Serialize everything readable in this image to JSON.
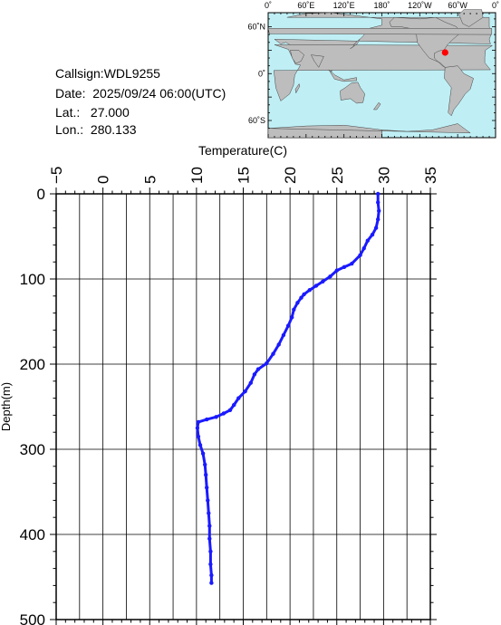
{
  "info": {
    "callsign": "Callsign:WDL9255",
    "date": "Date:  2025/09/24 06:00(UTC)",
    "lat": "Lat.:   27.000",
    "lon": "Lon.:  280.133"
  },
  "map": {
    "top_labels": [
      "0˚",
      "60˚E",
      "120˚E",
      "180˚",
      "120˚W",
      "60˚W",
      "0˚"
    ],
    "lat_labels": [
      "60˚N",
      "0˚",
      "60˚S"
    ],
    "ocean_color": "#bfeff5",
    "land_color": "#bdbdbd",
    "marker_color": "#ff0000",
    "marker": {
      "lon": 280.133,
      "lat": 27.0
    }
  },
  "chart_data": {
    "type": "line",
    "title": "",
    "xlabel": "Temperature(C)",
    "ylabel": "Depth(m)",
    "xlim": [
      -5,
      35
    ],
    "ylim": [
      0,
      500
    ],
    "y_inverted": true,
    "x_axis_position": "top",
    "grid": true,
    "x_ticks": [
      -5,
      0,
      5,
      10,
      15,
      20,
      25,
      30,
      35
    ],
    "y_ticks": [
      0,
      100,
      200,
      300,
      400,
      500
    ],
    "x_tick_labels": [
      "−5",
      "0",
      "5",
      "10",
      "15",
      "20",
      "25",
      "30",
      "35"
    ],
    "y_tick_labels": [
      "0",
      "100",
      "200",
      "300",
      "400",
      "500"
    ],
    "series_color": "#1a1aff",
    "series": [
      {
        "name": "",
        "points": [
          [
            29.4,
            0
          ],
          [
            29.4,
            10
          ],
          [
            29.5,
            20
          ],
          [
            29.4,
            30
          ],
          [
            29.2,
            40
          ],
          [
            28.8,
            48
          ],
          [
            28.3,
            55
          ],
          [
            27.9,
            64
          ],
          [
            27.5,
            72
          ],
          [
            26.6,
            82
          ],
          [
            25.8,
            86
          ],
          [
            25.0,
            90
          ],
          [
            24.3,
            97
          ],
          [
            23.5,
            103
          ],
          [
            22.8,
            108
          ],
          [
            22.1,
            113
          ],
          [
            21.5,
            118
          ],
          [
            21.2,
            122
          ],
          [
            20.8,
            128
          ],
          [
            20.4,
            136
          ],
          [
            20.2,
            145
          ],
          [
            19.8,
            155
          ],
          [
            19.3,
            166
          ],
          [
            18.8,
            177
          ],
          [
            18.2,
            188
          ],
          [
            17.5,
            199
          ],
          [
            16.6,
            206
          ],
          [
            16.2,
            212
          ],
          [
            15.8,
            222
          ],
          [
            15.2,
            232
          ],
          [
            14.5,
            240
          ],
          [
            14.0,
            248
          ],
          [
            13.6,
            254
          ],
          [
            12.9,
            258
          ],
          [
            12.1,
            262
          ],
          [
            11.1,
            265
          ],
          [
            10.2,
            268
          ],
          [
            10.1,
            275
          ],
          [
            10.2,
            285
          ],
          [
            10.4,
            295
          ],
          [
            10.7,
            305
          ],
          [
            10.9,
            318
          ],
          [
            11.0,
            330
          ],
          [
            11.1,
            345
          ],
          [
            11.2,
            360
          ],
          [
            11.3,
            375
          ],
          [
            11.4,
            390
          ],
          [
            11.4,
            405
          ],
          [
            11.5,
            420
          ],
          [
            11.5,
            435
          ],
          [
            11.6,
            448
          ],
          [
            11.6,
            457
          ]
        ]
      }
    ]
  }
}
